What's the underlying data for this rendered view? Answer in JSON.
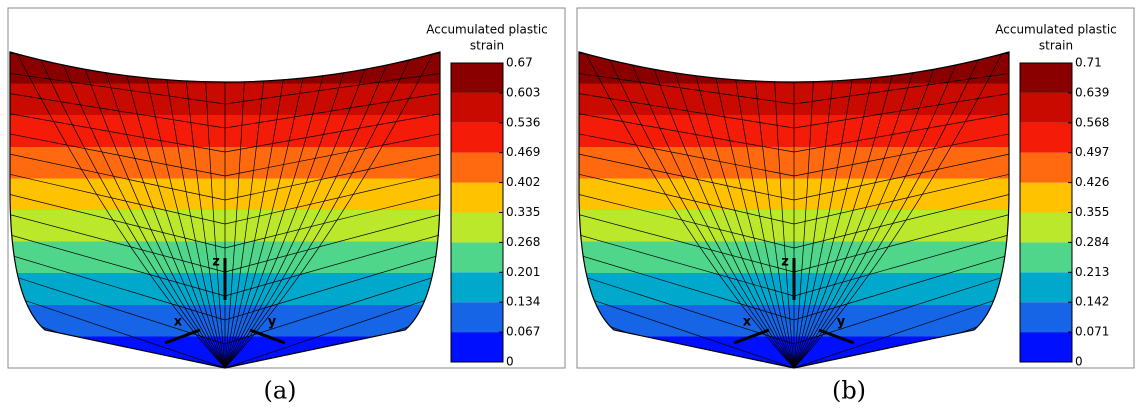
{
  "panels": [
    {
      "legend_title": [
        "Accumulated plastic",
        "strain"
      ],
      "ticks": [
        0,
        0.067,
        0.134,
        0.201,
        0.268,
        0.335,
        0.402,
        0.469,
        0.536,
        0.603,
        0.67
      ],
      "colors": [
        "#0010ff",
        "#1565e6",
        "#00a8cc",
        "#50d68a",
        "#bce82c",
        "#ffc200",
        "#ff6a10",
        "#f41c08",
        "#c80a00",
        "#8a0000"
      ],
      "axis_labels": [
        "z",
        "x",
        "y"
      ],
      "caption": "(a)"
    },
    {
      "legend_title": [
        "Accumulated plastic",
        "strain"
      ],
      "ticks": [
        0,
        0.071,
        0.142,
        0.213,
        0.284,
        0.355,
        0.426,
        0.497,
        0.568,
        0.639,
        0.71
      ],
      "colors": [
        "#0010ff",
        "#1565e6",
        "#00a8cc",
        "#50d68a",
        "#bce82c",
        "#ffc200",
        "#ff6a10",
        "#f41c08",
        "#c80a00",
        "#8a0000"
      ],
      "axis_labels": [
        "z",
        "x",
        "y"
      ],
      "caption": "(b)"
    }
  ]
}
